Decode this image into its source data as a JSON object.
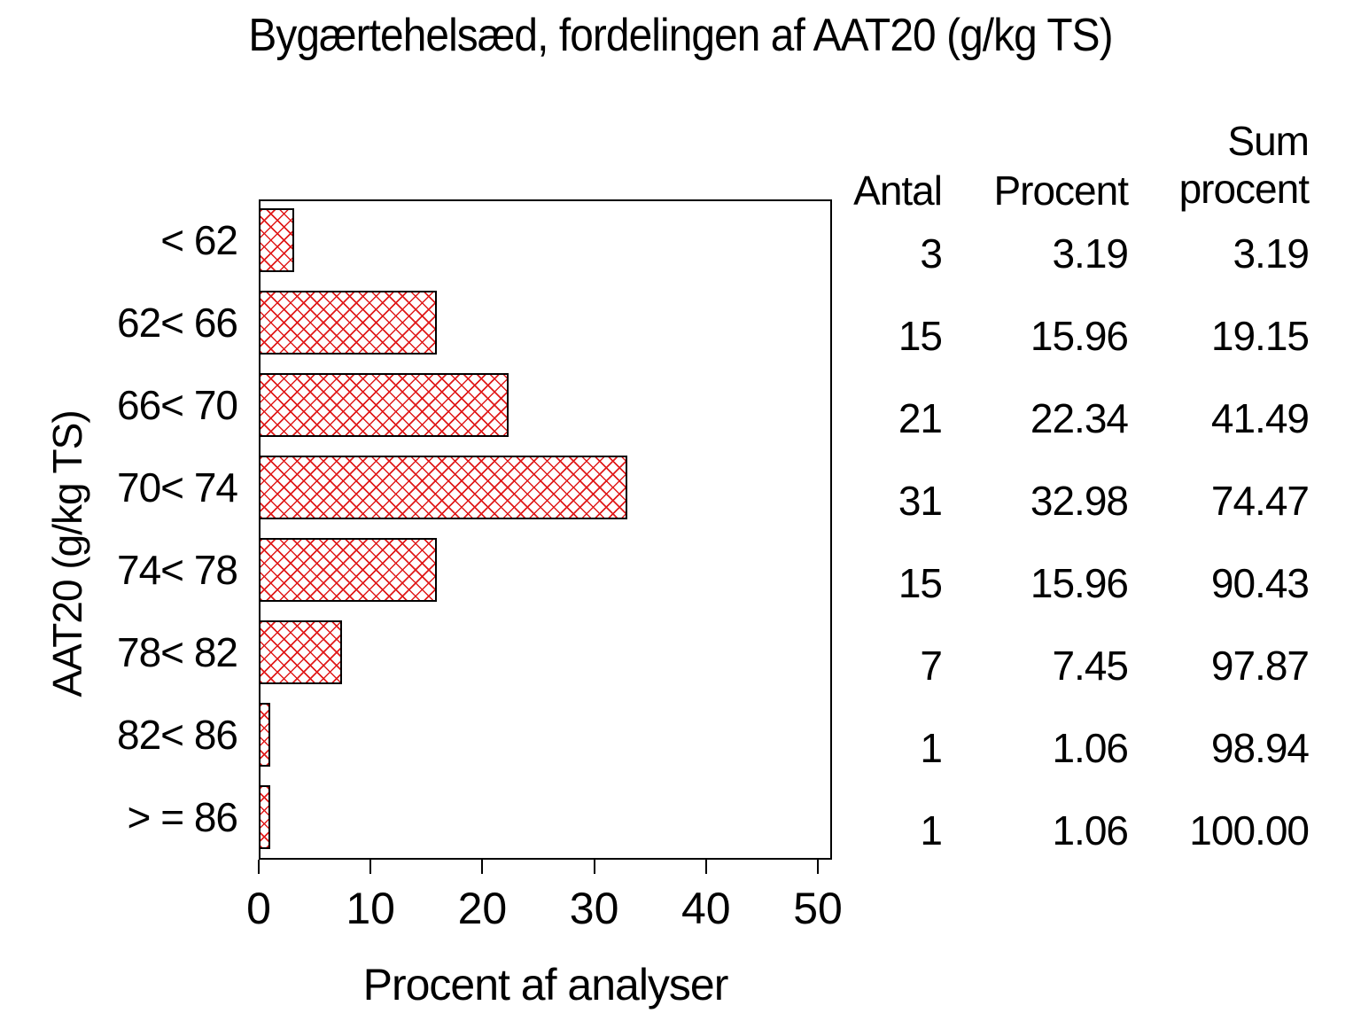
{
  "title": "Bygærtehelsæd, fordelingen af AAT20 (g/kg TS)",
  "axes": {
    "x_label": "Procent af analyser",
    "y_label": "AAT20 (g/kg TS)",
    "x_ticks": [
      "0",
      "10",
      "20",
      "30",
      "40",
      "50"
    ]
  },
  "table": {
    "headers": {
      "antal": "Antal",
      "procent": "Procent",
      "sum_line1": "Sum",
      "sum_line2": "procent"
    },
    "rows": [
      {
        "category": "< 62",
        "antal": "3",
        "procent": "3.19",
        "sum": "3.19"
      },
      {
        "category": "62< 66",
        "antal": "15",
        "procent": "15.96",
        "sum": "19.15"
      },
      {
        "category": "66< 70",
        "antal": "21",
        "procent": "22.34",
        "sum": "41.49"
      },
      {
        "category": "70< 74",
        "antal": "31",
        "procent": "32.98",
        "sum": "74.47"
      },
      {
        "category": "74< 78",
        "antal": "15",
        "procent": "15.96",
        "sum": "90.43"
      },
      {
        "category": "78< 82",
        "antal": "7",
        "procent": "7.45",
        "sum": "97.87"
      },
      {
        "category": "82< 86",
        "antal": "1",
        "procent": "1.06",
        "sum": "98.94"
      },
      {
        "category": "> = 86",
        "antal": "1",
        "procent": "1.06",
        "sum": "100.00"
      }
    ]
  },
  "chart_data": {
    "type": "bar",
    "orientation": "horizontal",
    "title": "Bygærtehelsæd, fordelingen af AAT20 (g/kg TS)",
    "xlabel": "Procent af analyser",
    "ylabel": "AAT20 (g/kg TS)",
    "categories": [
      "< 62",
      "62< 66",
      "66< 70",
      "70< 74",
      "74< 78",
      "78< 82",
      "82< 86",
      "> = 86"
    ],
    "values": [
      3.19,
      15.96,
      22.34,
      32.98,
      15.96,
      7.45,
      1.06,
      1.06
    ],
    "counts": [
      3,
      15,
      21,
      31,
      15,
      7,
      1,
      1
    ],
    "cumulative_percent": [
      3.19,
      19.15,
      41.49,
      74.47,
      90.43,
      97.87,
      98.94,
      100.0
    ],
    "xlim": [
      0,
      51.3
    ],
    "x_tick_step": 10,
    "grid": false,
    "legend": false,
    "bar_fill_style": "red-crosshatch",
    "bar_pattern_color": "#e01a1a",
    "bar_border_color": "#000000",
    "frame_color": "#000000",
    "background_color": "#ffffff"
  }
}
